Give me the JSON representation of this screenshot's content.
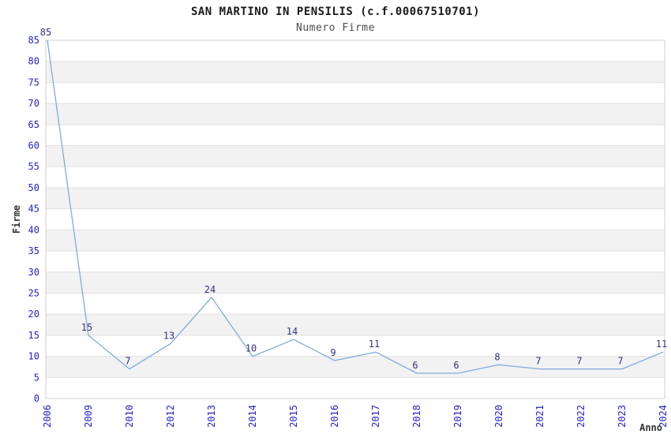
{
  "chart_data": {
    "type": "line",
    "title": "SAN MARTINO IN PENSILIS (c.f.00067510701)",
    "subtitle": "Numero Firme",
    "xlabel": "Anno",
    "ylabel": "Firme",
    "categories": [
      "2006",
      "2009",
      "2010",
      "2012",
      "2013",
      "2014",
      "2015",
      "2016",
      "2017",
      "2018",
      "2019",
      "2020",
      "2021",
      "2022",
      "2023",
      "2024"
    ],
    "values": [
      85,
      15,
      7,
      13,
      24,
      10,
      14,
      9,
      11,
      6,
      6,
      8,
      7,
      7,
      7,
      11
    ],
    "ylim": [
      0,
      85
    ],
    "ytick_step": 5,
    "grid": "horizontal-bands",
    "legend": "none",
    "colors": {
      "line": "#7dabe0",
      "tick_label": "#2222cc",
      "data_label": "#333380",
      "band_gray": "#f2f2f2",
      "band_white": "#ffffff",
      "gridline": "#e0e0e0",
      "plot_border": "#d0d0d0",
      "title": "#1a1a1a",
      "subtitle": "#4d4d4d",
      "axis_name": "#333333"
    }
  }
}
